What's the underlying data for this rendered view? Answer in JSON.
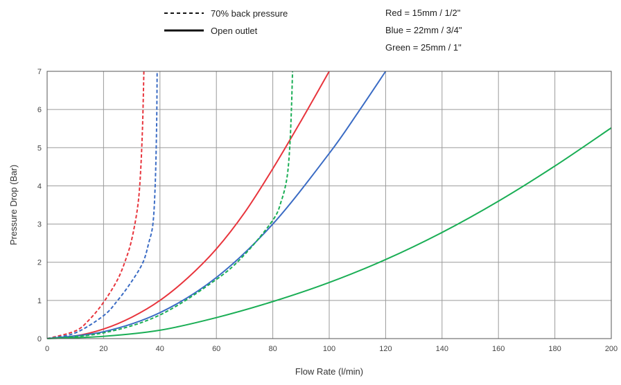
{
  "legend": {
    "line_styles": [
      {
        "label": "70% back pressure",
        "style": "dashed"
      },
      {
        "label": "Open outlet",
        "style": "solid"
      }
    ],
    "color_key": [
      "Red = 15mm /  1/2\"",
      "Blue = 22mm /  3/4\"",
      "Green = 25mm / 1\""
    ]
  },
  "chart_data": {
    "type": "line",
    "xlabel": "Flow Rate (l/min)",
    "ylabel": "Pressure Drop (Bar)",
    "xlim": [
      0,
      200
    ],
    "ylim": [
      0,
      7
    ],
    "xticks": [
      0,
      20,
      40,
      60,
      80,
      100,
      120,
      140,
      160,
      180,
      200
    ],
    "yticks": [
      0,
      1,
      2,
      3,
      4,
      5,
      6,
      7
    ],
    "grid": true,
    "series": [
      {
        "pipe": "15mm",
        "outlet": "open",
        "color": "#e8343c",
        "dash": false,
        "x": [
          0,
          10,
          20,
          30,
          40,
          50,
          60,
          70,
          80,
          90,
          100
        ],
        "y": [
          0,
          0.07,
          0.25,
          0.56,
          1.0,
          1.6,
          2.35,
          3.3,
          4.45,
          5.7,
          7.0
        ]
      },
      {
        "pipe": "22mm",
        "outlet": "open",
        "color": "#3a6bc4",
        "dash": false,
        "x": [
          0,
          20,
          40,
          60,
          80,
          100,
          110,
          120
        ],
        "y": [
          0,
          0.18,
          0.68,
          1.6,
          3.0,
          4.85,
          5.9,
          7.0
        ]
      },
      {
        "pipe": "25mm",
        "outlet": "open",
        "color": "#1aae55",
        "dash": false,
        "x": [
          0,
          20,
          40,
          60,
          80,
          100,
          120,
          140,
          160,
          180,
          200
        ],
        "y": [
          0,
          0.06,
          0.22,
          0.55,
          0.97,
          1.47,
          2.07,
          2.78,
          3.6,
          4.52,
          5.52
        ]
      },
      {
        "pipe": "15mm",
        "outlet": "70% back pressure",
        "color": "#e8343c",
        "dash": true,
        "x": [
          0,
          10,
          15,
          20,
          25,
          28,
          30,
          32,
          33,
          33.8,
          34.3
        ],
        "y": [
          0,
          0.2,
          0.5,
          0.95,
          1.55,
          2.1,
          2.6,
          3.4,
          4.2,
          5.5,
          7.0
        ]
      },
      {
        "pipe": "22mm",
        "outlet": "70% back pressure",
        "color": "#3a6bc4",
        "dash": true,
        "x": [
          0,
          10,
          20,
          25,
          30,
          34,
          36,
          37.5,
          38.3,
          38.8,
          39.0
        ],
        "y": [
          0,
          0.15,
          0.6,
          1.0,
          1.5,
          2.0,
          2.5,
          3.0,
          4.0,
          5.5,
          7.0
        ]
      },
      {
        "pipe": "25mm",
        "outlet": "70% back pressure",
        "color": "#1aae55",
        "dash": true,
        "x": [
          0,
          20,
          40,
          60,
          70,
          80,
          83,
          85,
          86,
          86.6,
          87
        ],
        "y": [
          0,
          0.15,
          0.62,
          1.55,
          2.2,
          3.1,
          3.6,
          4.2,
          5.0,
          6.0,
          7.0
        ]
      }
    ]
  }
}
